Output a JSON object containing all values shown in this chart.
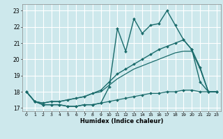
{
  "xlabel": "Humidex (Indice chaleur)",
  "xlim": [
    -0.5,
    23.5
  ],
  "ylim": [
    16.8,
    23.4
  ],
  "yticks": [
    17,
    18,
    19,
    20,
    21,
    22,
    23
  ],
  "xticks": [
    0,
    1,
    2,
    3,
    4,
    5,
    6,
    7,
    8,
    9,
    10,
    11,
    12,
    13,
    14,
    15,
    16,
    17,
    18,
    19,
    20,
    21,
    22,
    23
  ],
  "bg_color": "#cde8ec",
  "grid_color": "#ffffff",
  "line_color": "#1a6b6b",
  "series": [
    {
      "x": [
        0,
        1,
        2,
        3,
        4,
        5,
        6,
        7,
        8,
        9,
        10,
        11,
        12,
        13,
        14,
        15,
        16,
        17,
        18,
        19,
        20,
        21,
        22,
        23
      ],
      "y": [
        18.0,
        17.4,
        17.2,
        17.2,
        17.2,
        17.1,
        17.1,
        17.2,
        17.2,
        17.3,
        18.3,
        21.9,
        20.5,
        22.5,
        21.6,
        22.1,
        22.2,
        23.0,
        22.1,
        21.2,
        20.6,
        18.6,
        18.0,
        18.0
      ],
      "marker": "D",
      "markersize": 2.0,
      "linewidth": 1.0
    },
    {
      "x": [
        0,
        1,
        2,
        3,
        4,
        5,
        6,
        7,
        8,
        9,
        10,
        11,
        12,
        13,
        14,
        15,
        16,
        17,
        18,
        19,
        20,
        21,
        22,
        23
      ],
      "y": [
        18.0,
        17.4,
        17.3,
        17.4,
        17.4,
        17.5,
        17.6,
        17.7,
        17.9,
        18.1,
        18.6,
        19.1,
        19.4,
        19.7,
        20.0,
        20.3,
        20.6,
        20.8,
        21.0,
        21.2,
        20.6,
        19.5,
        18.0,
        18.0
      ],
      "marker": "D",
      "markersize": 2.0,
      "linewidth": 1.0
    },
    {
      "x": [
        0,
        1,
        2,
        3,
        4,
        5,
        6,
        7,
        8,
        9,
        10,
        11,
        12,
        13,
        14,
        15,
        16,
        17,
        18,
        19,
        20,
        21,
        22,
        23
      ],
      "y": [
        18.0,
        17.4,
        17.3,
        17.4,
        17.4,
        17.5,
        17.6,
        17.7,
        17.9,
        18.0,
        18.4,
        18.8,
        19.1,
        19.4,
        19.6,
        19.8,
        20.0,
        20.2,
        20.4,
        20.5,
        20.5,
        19.4,
        18.0,
        18.0
      ],
      "marker": null,
      "markersize": 0,
      "linewidth": 0.9
    },
    {
      "x": [
        0,
        1,
        2,
        3,
        4,
        5,
        6,
        7,
        8,
        9,
        10,
        11,
        12,
        13,
        14,
        15,
        16,
        17,
        18,
        19,
        20,
        21,
        22,
        23
      ],
      "y": [
        18.0,
        17.4,
        17.2,
        17.2,
        17.2,
        17.1,
        17.1,
        17.2,
        17.2,
        17.3,
        17.4,
        17.5,
        17.6,
        17.7,
        17.8,
        17.9,
        17.9,
        18.0,
        18.0,
        18.1,
        18.1,
        18.0,
        18.0,
        18.0
      ],
      "marker": "D",
      "markersize": 2.0,
      "linewidth": 0.9
    }
  ]
}
